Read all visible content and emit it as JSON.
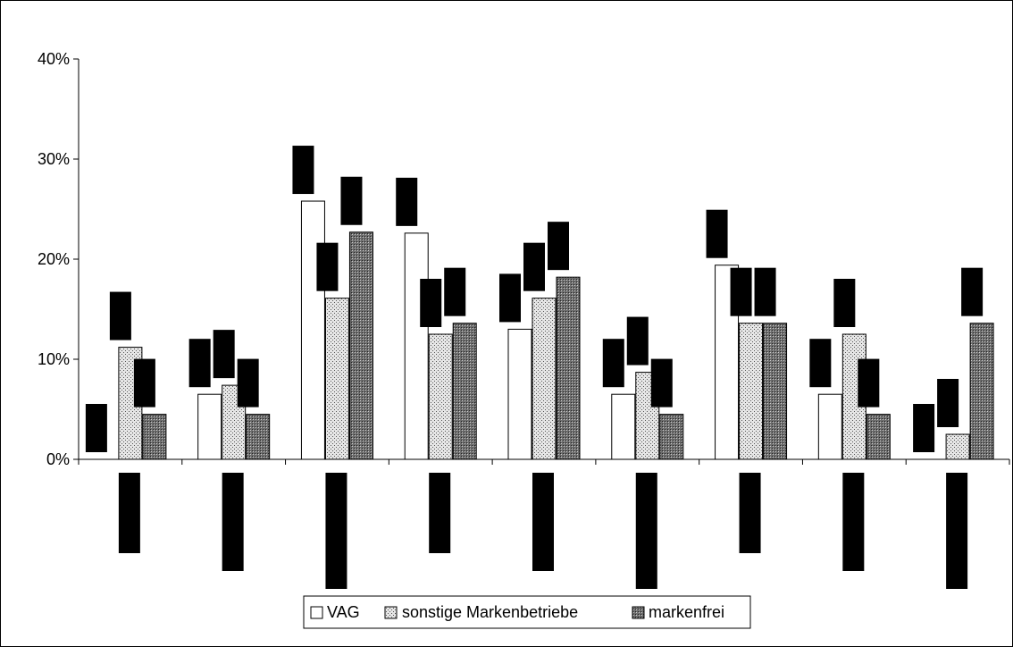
{
  "chart_data": {
    "type": "bar",
    "categories": [
      "",
      "",
      "",
      "",
      "",
      "",
      "",
      "",
      ""
    ],
    "series": [
      {
        "name": "VAG",
        "values": [
          0,
          6.5,
          25.8,
          22.6,
          13.0,
          6.5,
          19.4,
          6.5,
          0
        ],
        "color": "#ffffff",
        "pattern": "none"
      },
      {
        "name": "sonstige Markenbetriebe",
        "values": [
          11.2,
          7.4,
          16.1,
          12.5,
          16.1,
          8.7,
          13.6,
          12.5,
          2.5
        ],
        "color": "#cccccc",
        "pattern": "fine-dots"
      },
      {
        "name": "markenfrei",
        "values": [
          4.5,
          4.5,
          22.7,
          13.6,
          18.2,
          4.5,
          13.6,
          4.5,
          13.6
        ],
        "color": "#777777",
        "pattern": "dense-dots"
      }
    ],
    "ylim": [
      0,
      40
    ],
    "yticks": [
      "0%",
      "10%",
      "20%",
      "30%",
      "40%"
    ],
    "legend_position": "bottom",
    "grid": false,
    "title": "",
    "xlabel": "",
    "ylabel": ""
  }
}
